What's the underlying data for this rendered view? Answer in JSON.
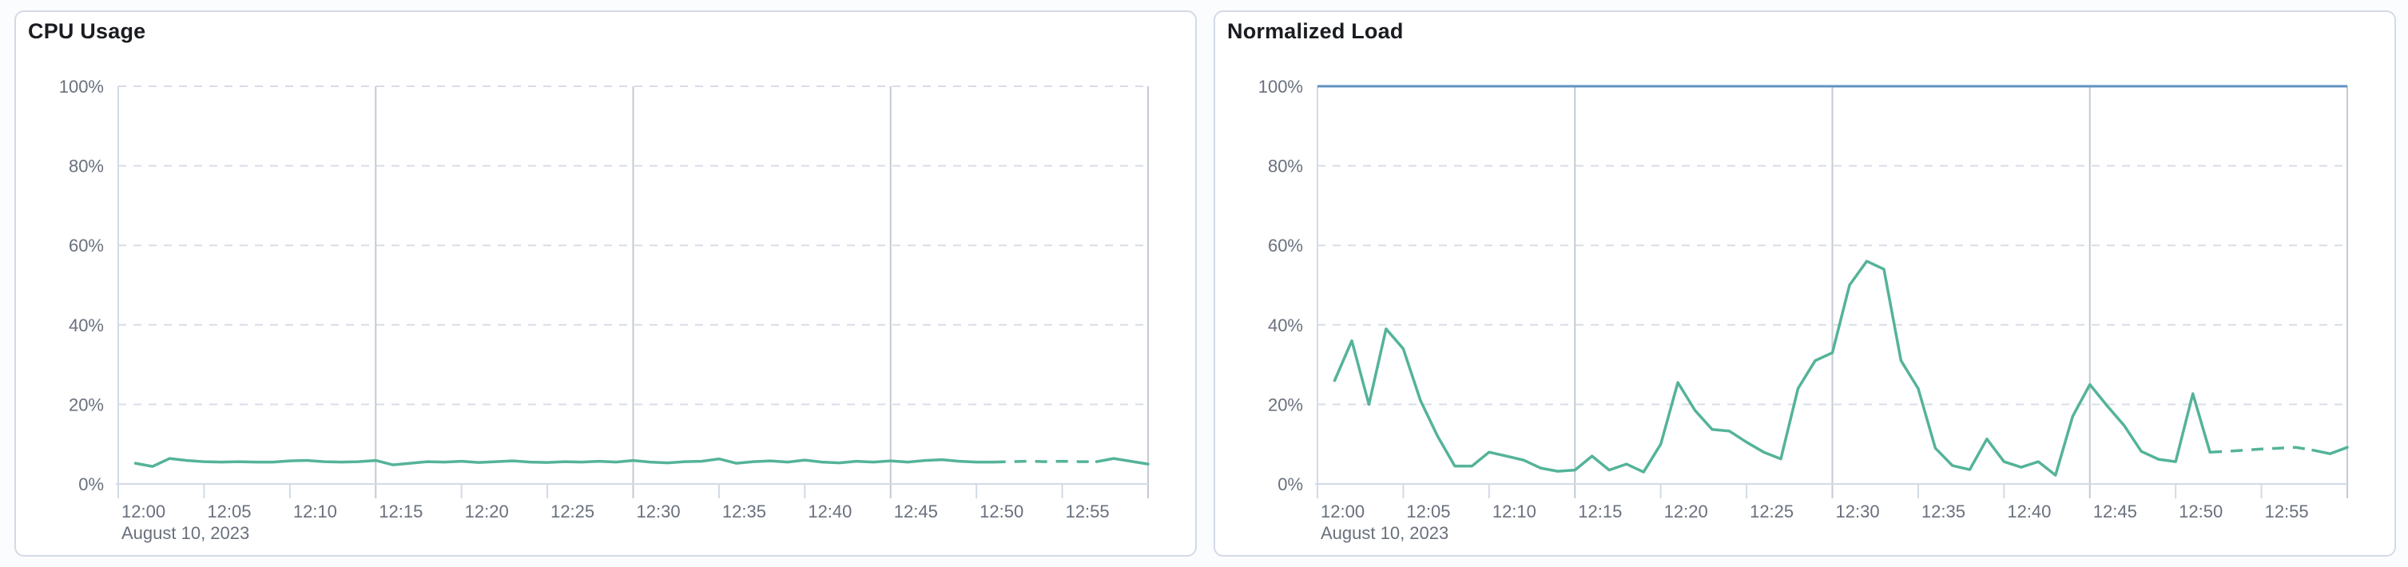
{
  "colors": {
    "series_green": "#54b399",
    "threshold_blue": "#6092c0",
    "grid_dashed": "#d8dde7",
    "grid_solid": "#c4cad4",
    "axis_line": "#d3dae6",
    "tick_text": "#69707d",
    "title_text": "#1a1c21",
    "panel_border": "#d3dae6",
    "panel_bg": "#ffffff",
    "page_bg": "#fbfcfd"
  },
  "chart_data": [
    {
      "type": "line",
      "title": "CPU Usage",
      "date_label": "August 10, 2023",
      "x_tick_labels": [
        "12:00",
        "12:05",
        "12:10",
        "12:15",
        "12:20",
        "12:25",
        "12:30",
        "12:35",
        "12:40",
        "12:45",
        "12:50",
        "12:55"
      ],
      "y_tick_labels": [
        "0%",
        "20%",
        "40%",
        "60%",
        "80%",
        "100%"
      ],
      "ylim": [
        0,
        100
      ],
      "x_domain": [
        "12:00",
        "13:00"
      ],
      "grid_h_values": [
        20,
        40,
        60,
        80,
        100
      ],
      "grid_v_minutes": [
        15,
        30,
        45,
        60
      ],
      "line_color": "#54b399",
      "threshold": null,
      "dashed_segment": {
        "from_index": 50,
        "to_index": 56
      },
      "times": [
        "12:01",
        "12:02",
        "12:03",
        "12:04",
        "12:05",
        "12:06",
        "12:07",
        "12:08",
        "12:09",
        "12:10",
        "12:11",
        "12:12",
        "12:13",
        "12:14",
        "12:15",
        "12:16",
        "12:17",
        "12:18",
        "12:19",
        "12:20",
        "12:21",
        "12:22",
        "12:23",
        "12:24",
        "12:25",
        "12:26",
        "12:27",
        "12:28",
        "12:29",
        "12:30",
        "12:31",
        "12:32",
        "12:33",
        "12:34",
        "12:35",
        "12:36",
        "12:37",
        "12:38",
        "12:39",
        "12:40",
        "12:41",
        "12:42",
        "12:43",
        "12:44",
        "12:45",
        "12:46",
        "12:47",
        "12:48",
        "12:49",
        "12:50",
        "12:51",
        "12:52",
        "12:53",
        "12:54",
        "12:55",
        "12:56",
        "12:57",
        "12:58",
        "12:59",
        "13:00"
      ],
      "values": [
        5.2,
        4.4,
        6.4,
        5.9,
        5.6,
        5.5,
        5.6,
        5.5,
        5.5,
        5.8,
        5.9,
        5.6,
        5.5,
        5.6,
        5.9,
        4.8,
        5.2,
        5.6,
        5.5,
        5.7,
        5.4,
        5.6,
        5.8,
        5.5,
        5.4,
        5.6,
        5.5,
        5.7,
        5.5,
        5.9,
        5.5,
        5.3,
        5.6,
        5.7,
        6.3,
        5.2,
        5.6,
        5.8,
        5.5,
        6.0,
        5.5,
        5.3,
        5.7,
        5.5,
        5.8,
        5.5,
        5.9,
        6.1,
        5.7,
        5.5,
        5.5,
        5.6,
        5.7,
        5.6,
        5.7,
        5.6,
        5.6,
        6.4,
        5.7,
        5.0
      ]
    },
    {
      "type": "line",
      "title": "Normalized Load",
      "date_label": "August 10, 2023",
      "x_tick_labels": [
        "12:00",
        "12:05",
        "12:10",
        "12:15",
        "12:20",
        "12:25",
        "12:30",
        "12:35",
        "12:40",
        "12:45",
        "12:50",
        "12:55"
      ],
      "y_tick_labels": [
        "0%",
        "20%",
        "40%",
        "60%",
        "80%",
        "100%"
      ],
      "ylim": [
        0,
        100
      ],
      "x_domain": [
        "12:00",
        "13:00"
      ],
      "grid_h_values": [
        20,
        40,
        60,
        80,
        100
      ],
      "grid_v_minutes": [
        15,
        30,
        45,
        60
      ],
      "line_color": "#54b399",
      "threshold": {
        "value": 100,
        "color": "#6092c0"
      },
      "dashed_segment": {
        "from_index": 51,
        "to_index": 57
      },
      "times": [
        "12:01",
        "12:02",
        "12:03",
        "12:04",
        "12:05",
        "12:06",
        "12:07",
        "12:08",
        "12:09",
        "12:10",
        "12:11",
        "12:12",
        "12:13",
        "12:14",
        "12:15",
        "12:16",
        "12:17",
        "12:18",
        "12:19",
        "12:20",
        "12:21",
        "12:22",
        "12:23",
        "12:24",
        "12:25",
        "12:26",
        "12:27",
        "12:28",
        "12:29",
        "12:30",
        "12:31",
        "12:32",
        "12:33",
        "12:34",
        "12:35",
        "12:36",
        "12:37",
        "12:38",
        "12:39",
        "12:40",
        "12:41",
        "12:42",
        "12:43",
        "12:44",
        "12:45",
        "12:46",
        "12:47",
        "12:48",
        "12:49",
        "12:50",
        "12:51",
        "12:52",
        "12:53",
        "12:54",
        "12:55",
        "12:56",
        "12:57",
        "12:58",
        "12:59",
        "13:00"
      ],
      "values": [
        26,
        36,
        20,
        39,
        34,
        21,
        12,
        4.5,
        4.5,
        8,
        7,
        6,
        4,
        3.2,
        3.5,
        7,
        3.5,
        5,
        3,
        10,
        25.5,
        18.5,
        13.7,
        13.3,
        10.5,
        8,
        6.3,
        24,
        31,
        33,
        50,
        56,
        54,
        31,
        24,
        9,
        4.6,
        3.6,
        11.3,
        5.6,
        4.2,
        5.6,
        2.2,
        17,
        25,
        19.7,
        14.7,
        8.2,
        6.2,
        5.6,
        22.7,
        8,
        8.2,
        8.5,
        8.8,
        9,
        9.2,
        8.5,
        7.6,
        9.2
      ]
    }
  ]
}
